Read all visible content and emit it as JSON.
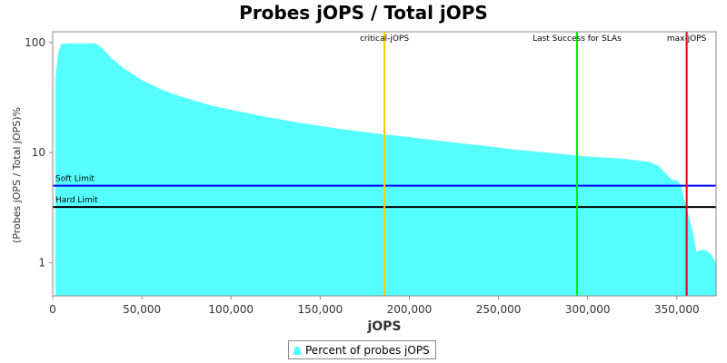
{
  "chart_data": {
    "type": "area",
    "title": "Probes jOPS / Total jOPS",
    "xlabel": "jOPS",
    "ylabel": "(Probes jOPS / Total jOPS)%",
    "y_scale": "log",
    "xlim": [
      0,
      372000
    ],
    "ylim": [
      0.5,
      125
    ],
    "x_ticks": [
      0,
      50000,
      100000,
      150000,
      200000,
      250000,
      300000,
      350000
    ],
    "x_tick_labels": [
      "0",
      "50,000",
      "100,000",
      "150,000",
      "200,000",
      "250,000",
      "300,000",
      "350,000"
    ],
    "y_ticks": [
      1,
      10,
      100
    ],
    "y_tick_labels": [
      "1",
      "10",
      "100"
    ],
    "series": [
      {
        "name": "Percent of probes jOPS",
        "color": "#55ffff",
        "x": [
          1500,
          3000,
          5000,
          10000,
          15000,
          20000,
          24000,
          28000,
          33000,
          40000,
          50000,
          60000,
          70000,
          80000,
          90000,
          100000,
          120000,
          140000,
          160000,
          180000,
          200000,
          220000,
          240000,
          260000,
          280000,
          300000,
          320000,
          335000,
          340000,
          344000,
          347000,
          350000,
          352000,
          354000,
          357000,
          359000,
          361000,
          363000,
          366000,
          369000,
          372000
        ],
        "values": [
          45,
          80,
          97,
          98,
          98,
          98,
          98,
          88,
          72,
          58,
          45.5,
          38,
          33,
          29.5,
          26.5,
          24.5,
          21,
          18.5,
          16.5,
          15,
          13.8,
          12.6,
          11.6,
          10.6,
          9.9,
          9.2,
          8.8,
          8.2,
          7.5,
          6.4,
          5.7,
          5.6,
          5.2,
          3.8,
          2.5,
          1.9,
          1.25,
          1.3,
          1.3,
          1.2,
          1.0
        ]
      }
    ],
    "vertical_markers": [
      {
        "label": "critical-jOPS",
        "x": 186000,
        "color": "#ffcc00"
      },
      {
        "label": "Last Success for SLAs",
        "x": 294000,
        "color": "#00ee00"
      },
      {
        "label": "max-jOPS",
        "x": 355500,
        "color": "#dd0000"
      }
    ],
    "horizontal_lines": [
      {
        "label": "Soft Limit",
        "y": 5,
        "color": "#0000ff"
      },
      {
        "label": "Hard Limit",
        "y": 3.2,
        "color": "#000000"
      }
    ],
    "legend": {
      "position": "bottom-center",
      "label": "Percent of probes jOPS"
    },
    "grid": false
  }
}
